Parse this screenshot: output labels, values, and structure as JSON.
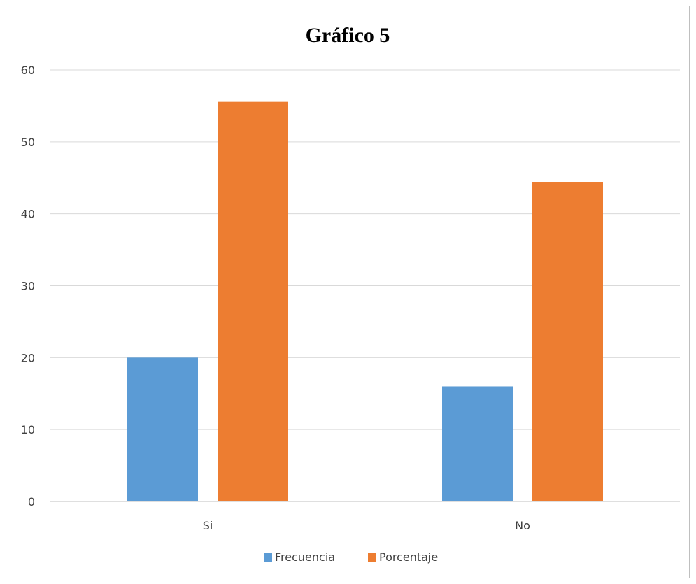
{
  "chart_data": {
    "type": "bar",
    "title": "Gráfico 5",
    "xlabel": "",
    "ylabel": "",
    "categories": [
      "Si",
      "No"
    ],
    "series": [
      {
        "name": "Frecuencia",
        "values": [
          20,
          16
        ],
        "color": "#5b9bd5"
      },
      {
        "name": "Porcentaje",
        "values": [
          55.56,
          44.44
        ],
        "color": "#ed7d31"
      }
    ],
    "ylim": [
      0,
      60
    ],
    "yticks": [
      0,
      10,
      20,
      30,
      40,
      50,
      60
    ],
    "grid": true,
    "legend_position": "bottom"
  }
}
